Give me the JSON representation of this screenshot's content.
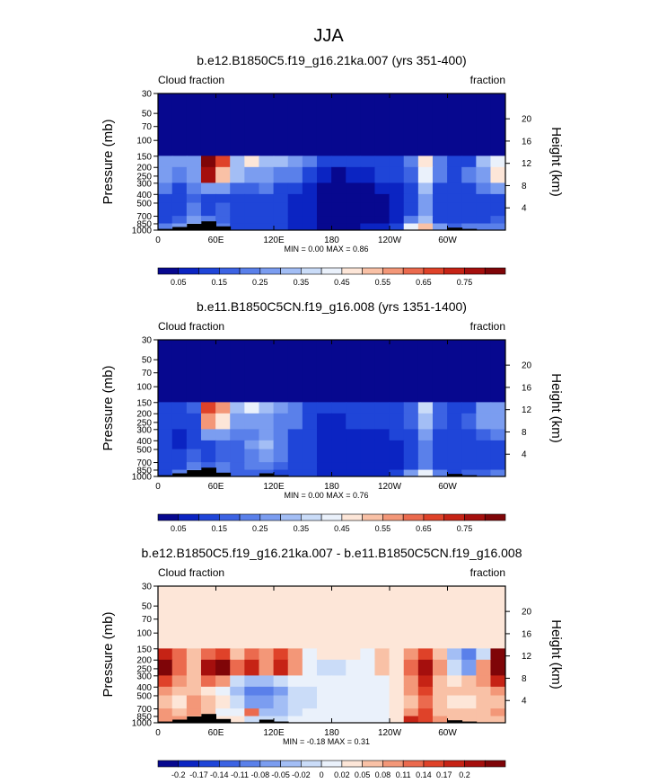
{
  "figure": {
    "title": "JJA"
  },
  "chart_data": [
    {
      "type": "heatmap",
      "title": "b.e12.B1850C5.f19_g16.21ka.007 (yrs 351-400)",
      "left_label": "Cloud fraction",
      "right_label": "fraction",
      "ylabel": "Pressure (mb)",
      "ylabel_right": "Height (km)",
      "x_ticks": [
        "0",
        "60E",
        "120E",
        "180",
        "120W",
        "60W"
      ],
      "y_ticks": [
        "1000",
        "850",
        "700",
        "500",
        "400",
        "300",
        "250",
        "200",
        "150",
        "100",
        "70",
        "50",
        "30"
      ],
      "y_ticks_right": [
        "20",
        "16",
        "12",
        "8",
        "4"
      ],
      "stats": "MIN =   0.00  MAX =   0.86",
      "colorbar": {
        "labels": [
          "0.05",
          "0.15",
          "0.25",
          "0.35",
          "0.45",
          "0.55",
          "0.65",
          "0.75"
        ],
        "colors": [
          "#07088f",
          "#0b24c2",
          "#1f45d8",
          "#3c63e3",
          "#5a80ea",
          "#7b9df0",
          "#a3bef5",
          "#cadcf8",
          "#eaf1fb",
          "#fde6d8",
          "#f9c1a6",
          "#f39778",
          "#eb6a4e",
          "#df4229",
          "#c62315",
          "#a50f0d",
          "#7f0508"
        ]
      },
      "grid": [
        [
          0.03,
          0.03,
          0.03,
          0.02,
          0.02,
          0.02,
          0.02,
          0.02,
          0.02,
          0.02,
          0.02,
          0.02,
          0.02,
          0.02,
          0.02,
          0.03,
          0.03,
          0.03,
          0.03,
          0.03,
          0.03,
          0.03,
          0.03,
          0.03
        ],
        [
          0.25,
          0.28,
          0.25,
          0.8,
          0.65,
          0.32,
          0.45,
          0.35,
          0.35,
          0.3,
          0.22,
          0.12,
          0.1,
          0.12,
          0.15,
          0.15,
          0.12,
          0.2,
          0.45,
          0.2,
          0.12,
          0.15,
          0.35,
          0.4
        ],
        [
          0.28,
          0.22,
          0.3,
          0.75,
          0.5,
          0.35,
          0.3,
          0.28,
          0.22,
          0.2,
          0.1,
          0.05,
          0.04,
          0.05,
          0.08,
          0.1,
          0.1,
          0.18,
          0.4,
          0.2,
          0.12,
          0.2,
          0.3,
          0.45
        ],
        [
          0.2,
          0.14,
          0.22,
          0.3,
          0.25,
          0.18,
          0.18,
          0.2,
          0.15,
          0.12,
          0.06,
          0.03,
          0.03,
          0.03,
          0.04,
          0.06,
          0.08,
          0.14,
          0.35,
          0.15,
          0.12,
          0.15,
          0.22,
          0.25
        ],
        [
          0.15,
          0.1,
          0.18,
          0.12,
          0.15,
          0.12,
          0.12,
          0.14,
          0.1,
          0.08,
          0.05,
          0.03,
          0.03,
          0.03,
          0.03,
          0.04,
          0.06,
          0.1,
          0.3,
          0.12,
          0.1,
          0.12,
          0.15,
          0.15
        ],
        [
          0.12,
          0.1,
          0.22,
          0.15,
          0.18,
          0.12,
          0.1,
          0.12,
          0.1,
          0.08,
          0.05,
          0.03,
          0.03,
          0.03,
          0.03,
          0.03,
          0.05,
          0.12,
          0.25,
          0.12,
          0.1,
          0.12,
          0.12,
          0.12
        ],
        [
          0.15,
          0.18,
          0.28,
          0.2,
          0.18,
          0.15,
          0.12,
          0.12,
          0.1,
          0.08,
          0.05,
          0.03,
          0.03,
          0.03,
          0.03,
          0.04,
          0.06,
          0.2,
          0.32,
          0.15,
          0.12,
          0.15,
          0.15,
          0.18
        ],
        [
          0.2,
          0.25,
          0.32,
          0.2,
          0.22,
          0.15,
          0.14,
          0.12,
          0.1,
          0.08,
          0.06,
          0.04,
          0.04,
          0.04,
          0.05,
          0.06,
          0.1,
          0.4,
          0.5,
          0.25,
          0.18,
          0.22,
          0.2,
          0.22
        ]
      ],
      "terrain": [
        0.1,
        0.25,
        0.5,
        0.7,
        0.3,
        0.0,
        0.0,
        0.0,
        0.0,
        0.0,
        0.0,
        0.0,
        0.0,
        0.0,
        0.0,
        0.0,
        0.0,
        0.0,
        0.0,
        0.0,
        0.2,
        0.1,
        0.0,
        0.0
      ]
    },
    {
      "type": "heatmap",
      "title": "b.e11.B1850C5CN.f19_g16.008 (yrs 1351-1400)",
      "left_label": "Cloud fraction",
      "right_label": "fraction",
      "ylabel": "Pressure (mb)",
      "ylabel_right": "Height (km)",
      "x_ticks": [
        "0",
        "60E",
        "120E",
        "180",
        "120W",
        "60W"
      ],
      "y_ticks": [
        "1000",
        "850",
        "700",
        "500",
        "400",
        "300",
        "250",
        "200",
        "150",
        "100",
        "70",
        "50",
        "30"
      ],
      "y_ticks_right": [
        "20",
        "16",
        "12",
        "8",
        "4"
      ],
      "stats": "MIN =   0.00  MAX =   0.76",
      "colorbar": {
        "labels": [
          "0.05",
          "0.15",
          "0.25",
          "0.35",
          "0.45",
          "0.55",
          "0.65",
          "0.75"
        ],
        "colors": [
          "#07088f",
          "#0b24c2",
          "#1f45d8",
          "#3c63e3",
          "#5a80ea",
          "#7b9df0",
          "#a3bef5",
          "#cadcf8",
          "#eaf1fb",
          "#fde6d8",
          "#f9c1a6",
          "#f39778",
          "#eb6a4e",
          "#df4229",
          "#c62315",
          "#a50f0d",
          "#7f0508"
        ]
      },
      "grid": [
        [
          0.03,
          0.03,
          0.03,
          0.02,
          0.02,
          0.02,
          0.02,
          0.02,
          0.02,
          0.02,
          0.02,
          0.02,
          0.02,
          0.02,
          0.02,
          0.03,
          0.03,
          0.03,
          0.03,
          0.03,
          0.03,
          0.03,
          0.03,
          0.03
        ],
        [
          0.15,
          0.14,
          0.18,
          0.7,
          0.55,
          0.35,
          0.4,
          0.32,
          0.25,
          0.22,
          0.15,
          0.1,
          0.1,
          0.12,
          0.12,
          0.12,
          0.12,
          0.18,
          0.38,
          0.18,
          0.12,
          0.15,
          0.3,
          0.28
        ],
        [
          0.12,
          0.1,
          0.15,
          0.6,
          0.45,
          0.3,
          0.28,
          0.28,
          0.22,
          0.2,
          0.12,
          0.08,
          0.08,
          0.1,
          0.1,
          0.1,
          0.12,
          0.18,
          0.35,
          0.18,
          0.12,
          0.18,
          0.25,
          0.3
        ],
        [
          0.1,
          0.06,
          0.12,
          0.25,
          0.25,
          0.22,
          0.22,
          0.3,
          0.2,
          0.15,
          0.1,
          0.06,
          0.06,
          0.06,
          0.06,
          0.08,
          0.1,
          0.14,
          0.28,
          0.15,
          0.12,
          0.14,
          0.18,
          0.2
        ],
        [
          0.12,
          0.08,
          0.15,
          0.15,
          0.18,
          0.18,
          0.25,
          0.32,
          0.22,
          0.14,
          0.1,
          0.06,
          0.06,
          0.05,
          0.05,
          0.06,
          0.08,
          0.12,
          0.22,
          0.12,
          0.1,
          0.12,
          0.14,
          0.15
        ],
        [
          0.12,
          0.1,
          0.18,
          0.14,
          0.18,
          0.18,
          0.22,
          0.25,
          0.2,
          0.14,
          0.1,
          0.06,
          0.05,
          0.05,
          0.05,
          0.05,
          0.06,
          0.12,
          0.2,
          0.12,
          0.1,
          0.12,
          0.12,
          0.12
        ],
        [
          0.1,
          0.12,
          0.22,
          0.18,
          0.2,
          0.18,
          0.2,
          0.22,
          0.18,
          0.14,
          0.1,
          0.06,
          0.05,
          0.05,
          0.05,
          0.06,
          0.08,
          0.15,
          0.22,
          0.14,
          0.12,
          0.14,
          0.12,
          0.14
        ],
        [
          0.15,
          0.2,
          0.3,
          0.18,
          0.22,
          0.18,
          0.18,
          0.18,
          0.15,
          0.12,
          0.1,
          0.08,
          0.07,
          0.07,
          0.08,
          0.08,
          0.1,
          0.25,
          0.4,
          0.2,
          0.15,
          0.18,
          0.18,
          0.2
        ]
      ],
      "terrain": [
        0.1,
        0.25,
        0.5,
        0.7,
        0.3,
        0.0,
        0.0,
        0.25,
        0.1,
        0.0,
        0.0,
        0.0,
        0.0,
        0.0,
        0.0,
        0.0,
        0.0,
        0.0,
        0.0,
        0.0,
        0.2,
        0.1,
        0.0,
        0.0
      ]
    },
    {
      "type": "heatmap",
      "title": "b.e12.B1850C5.f19_g16.21ka.007 - b.e11.B1850C5CN.f19_g16.008",
      "left_label": "Cloud fraction",
      "right_label": "fraction",
      "ylabel": "Pressure (mb)",
      "ylabel_right": "Height (km)",
      "x_ticks": [
        "0",
        "60E",
        "120E",
        "180",
        "120W",
        "60W"
      ],
      "y_ticks": [
        "1000",
        "850",
        "700",
        "500",
        "400",
        "300",
        "250",
        "200",
        "150",
        "100",
        "70",
        "50",
        "30"
      ],
      "y_ticks_right": [
        "20",
        "16",
        "12",
        "8",
        "4"
      ],
      "stats": "MIN =  -0.18  MAX =   0.31",
      "colorbar": {
        "labels": [
          "-0.2",
          "-0.17",
          "-0.14",
          "-0.11",
          "-0.08",
          "-0.05",
          "-0.02",
          "0",
          "0.02",
          "0.05",
          "0.08",
          "0.11",
          "0.14",
          "0.17",
          "0.2"
        ],
        "colors": [
          "#07088f",
          "#0b24c2",
          "#1f45d8",
          "#3c63e3",
          "#5a80ea",
          "#7b9df0",
          "#a3bef5",
          "#cadcf8",
          "#eaf1fb",
          "#fde6d8",
          "#f9c1a6",
          "#f39778",
          "#eb6a4e",
          "#df4229",
          "#c62315",
          "#a50f0d",
          "#7f0508"
        ]
      },
      "grid": [
        [
          0.0,
          0.0,
          0.0,
          0.0,
          0.0,
          0.0,
          0.0,
          0.0,
          0.0,
          0.0,
          0.0,
          0.0,
          0.0,
          0.0,
          0.0,
          0.0,
          0.0,
          0.0,
          0.0,
          0.0,
          0.0,
          0.0,
          0.0,
          0.0
        ],
        [
          0.15,
          0.08,
          0.02,
          0.1,
          0.12,
          0.04,
          0.08,
          0.05,
          0.12,
          0.06,
          -0.02,
          0.0,
          0.0,
          0.0,
          -0.02,
          0.02,
          0.0,
          0.05,
          0.12,
          0.04,
          -0.08,
          -0.14,
          -0.05,
          0.2
        ],
        [
          0.2,
          0.1,
          0.02,
          0.18,
          0.2,
          0.08,
          0.15,
          0.05,
          0.15,
          0.06,
          -0.02,
          -0.03,
          -0.04,
          -0.02,
          -0.02,
          0.02,
          0.0,
          0.08,
          0.18,
          0.06,
          -0.05,
          -0.1,
          0.05,
          0.28
        ],
        [
          0.12,
          0.06,
          0.02,
          0.1,
          0.06,
          -0.04,
          -0.06,
          -0.08,
          -0.05,
          -0.02,
          -0.02,
          -0.02,
          -0.02,
          -0.02,
          -0.02,
          -0.01,
          0.0,
          0.06,
          0.15,
          0.04,
          0.0,
          0.02,
          0.06,
          0.15
        ],
        [
          0.06,
          0.02,
          0.04,
          0.0,
          -0.02,
          -0.06,
          -0.12,
          -0.14,
          -0.1,
          -0.04,
          -0.03,
          -0.02,
          -0.02,
          -0.02,
          -0.02,
          -0.01,
          0.0,
          0.06,
          0.12,
          0.04,
          0.02,
          0.02,
          0.04,
          0.06
        ],
        [
          0.04,
          0.0,
          0.06,
          0.02,
          0.0,
          -0.04,
          -0.1,
          -0.1,
          -0.08,
          -0.04,
          -0.03,
          -0.02,
          -0.02,
          -0.02,
          -0.02,
          -0.01,
          0.0,
          0.04,
          0.1,
          0.02,
          0.0,
          0.0,
          0.02,
          0.04
        ],
        [
          0.06,
          0.04,
          0.06,
          0.02,
          -0.02,
          -0.02,
          0.08,
          -0.08,
          -0.06,
          -0.04,
          -0.02,
          -0.02,
          -0.02,
          -0.02,
          -0.02,
          -0.01,
          0.0,
          0.06,
          0.12,
          0.04,
          0.02,
          0.02,
          0.04,
          0.06
        ],
        [
          0.06,
          0.05,
          0.04,
          0.02,
          0.0,
          0.0,
          -0.04,
          -0.04,
          -0.04,
          -0.02,
          -0.02,
          -0.02,
          -0.02,
          -0.02,
          -0.02,
          -0.01,
          0.0,
          0.15,
          0.12,
          0.05,
          0.02,
          0.04,
          0.02,
          0.02
        ]
      ],
      "terrain": [
        0.1,
        0.25,
        0.5,
        0.7,
        0.3,
        0.0,
        0.0,
        0.25,
        0.1,
        0.0,
        0.0,
        0.0,
        0.0,
        0.0,
        0.0,
        0.0,
        0.0,
        0.0,
        0.0,
        0.0,
        0.2,
        0.1,
        0.0,
        0.0
      ]
    }
  ]
}
